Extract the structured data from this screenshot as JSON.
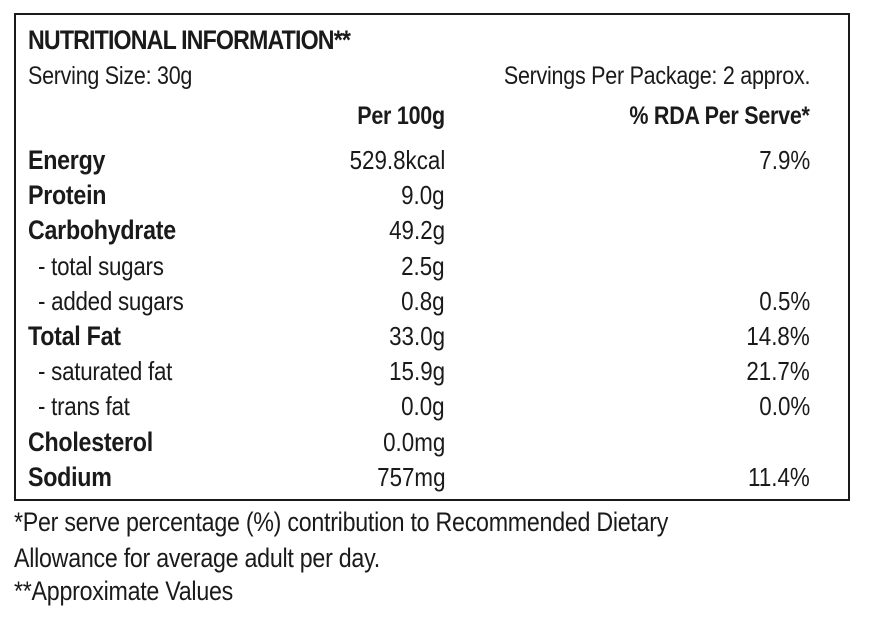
{
  "label": {
    "title": "NUTRITIONAL INFORMATION**",
    "serving_size": "Serving Size: 30g",
    "servings_per_package": "Servings Per Package: 2 approx.",
    "col_per100": "Per 100g",
    "col_rda": "% RDA Per Serve*",
    "rows": [
      {
        "name": "Energy",
        "per100": "529.8kcal",
        "rda": "7.9%"
      },
      {
        "name": "Protein",
        "per100": "9.0g",
        "rda": ""
      },
      {
        "name": "Carbohydrate",
        "per100": "49.2g",
        "rda": ""
      },
      {
        "name": " - total sugars",
        "per100": "2.5g",
        "rda": ""
      },
      {
        "name": " - added sugars",
        "per100": "0.8g",
        "rda": "0.5%"
      },
      {
        "name": "Total Fat",
        "per100": "33.0g",
        "rda": "14.8%"
      },
      {
        "name": " - saturated fat",
        "per100": "15.9g",
        "rda": "21.7%"
      },
      {
        "name": " - trans fat",
        "per100": "0.0g",
        "rda": "0.0%"
      },
      {
        "name": "Cholesterol",
        "per100": "0.0mg",
        "rda": ""
      },
      {
        "name": "Sodium",
        "per100": "757mg",
        "rda": "11.4%"
      }
    ]
  },
  "footnotes": {
    "line1": "*Per serve percentage (%) contribution to Recommended  Dietary",
    "line2": "Allowance for average adult per day.",
    "line3": "**Approximate Values"
  }
}
